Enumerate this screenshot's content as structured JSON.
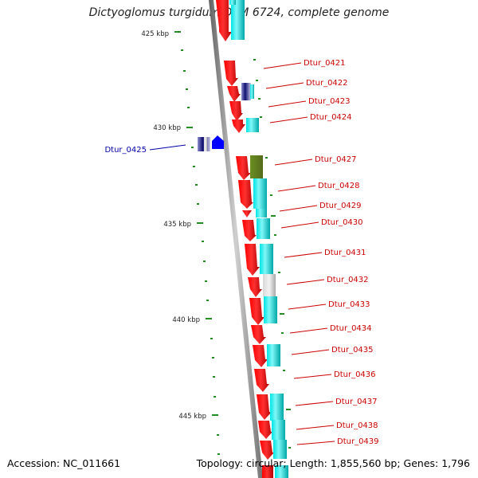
{
  "title": "Dictyoglomus turgidum DSM 6724, complete genome",
  "accession": "Accession: NC_011661",
  "summary": "Topology: circular; Length: 1,855,560 bp; Genes: 1,796",
  "colors": {
    "forward_gene": "#ff0000",
    "reverse_gene": "#00e0e0",
    "olive_gene": "#6b8e23",
    "gray_gene": "#c8c8c8",
    "navy_gene": "#1a1a8c",
    "blue_gene": "#0000ff",
    "ruler_tick": "#228b22",
    "backbone": "#808080",
    "label_red": "#cc0000",
    "label_blue": "#0000aa"
  },
  "ruler": [
    {
      "label": "425 kbp"
    },
    {
      "label": "430 kbp"
    },
    {
      "label": "435 kbp"
    },
    {
      "label": "440 kbp"
    },
    {
      "label": "445 kbp"
    }
  ],
  "gene_labels": [
    {
      "label": "Dtur_0421"
    },
    {
      "label": "Dtur_0422"
    },
    {
      "label": "Dtur_0423"
    },
    {
      "label": "Dtur_0424"
    },
    {
      "label": "Dtur_0425"
    },
    {
      "label": "Dtur_0427"
    },
    {
      "label": "Dtur_0428"
    },
    {
      "label": "Dtur_0429"
    },
    {
      "label": "Dtur_0430"
    },
    {
      "label": "Dtur_0431"
    },
    {
      "label": "Dtur_0432"
    },
    {
      "label": "Dtur_0433"
    },
    {
      "label": "Dtur_0434"
    },
    {
      "label": "Dtur_0435"
    },
    {
      "label": "Dtur_0436"
    },
    {
      "label": "Dtur_0437"
    },
    {
      "label": "Dtur_0438"
    },
    {
      "label": "Dtur_0439"
    }
  ]
}
